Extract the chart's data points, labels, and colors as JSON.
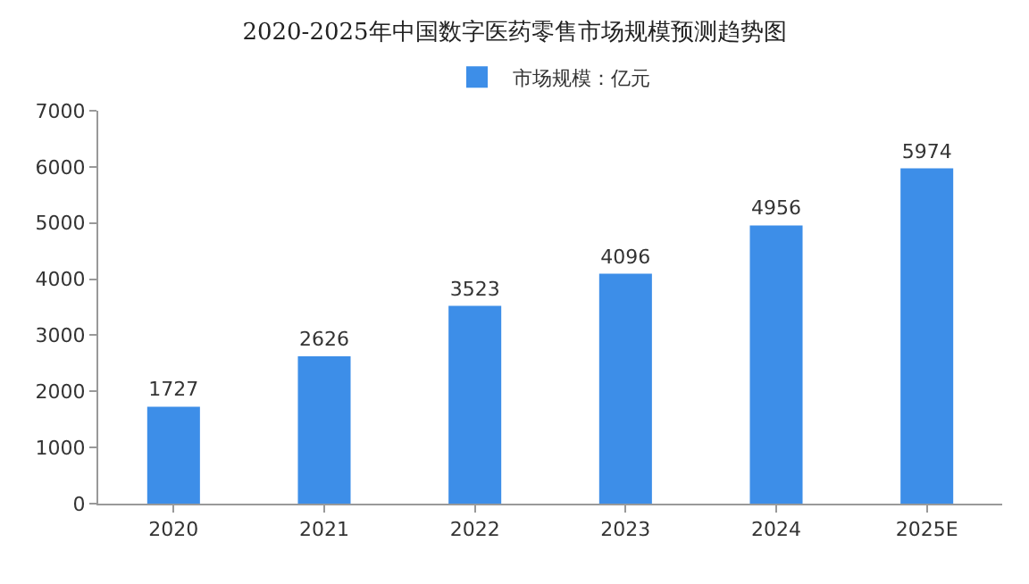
{
  "chart_data": {
    "type": "bar",
    "title": "2020-2025年中国数字医药零售市场规模预测趋势图",
    "categories": [
      "2020",
      "2021",
      "2022",
      "2023",
      "2024",
      "2025E"
    ],
    "series": [
      {
        "name": "市场规模：亿元",
        "color": "#3d8ee8",
        "values": [
          1727,
          2626,
          3523,
          4096,
          4956,
          5974
        ]
      }
    ],
    "ylim": [
      0,
      7000
    ],
    "yticks": [
      0,
      1000,
      2000,
      3000,
      4000,
      5000,
      6000,
      7000
    ],
    "grid": false,
    "legend": "top",
    "data_labels": true
  }
}
